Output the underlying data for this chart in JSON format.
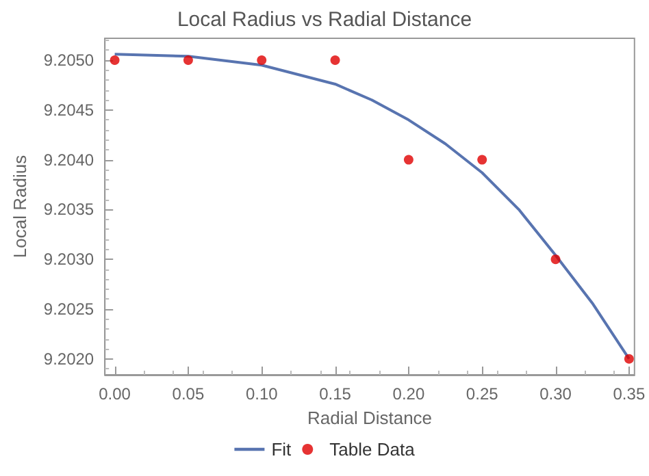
{
  "chart_data": {
    "type": "scatter",
    "title": "Local Radius vs Radial Distance",
    "xlabel": "Radial Distance",
    "ylabel": "Local Radius",
    "xlim": [
      -0.0067,
      0.3537
    ],
    "ylim": [
      9.20184,
      9.20522
    ],
    "xticks": [
      {
        "value": 0,
        "label": "0.00"
      },
      {
        "value": 0.05,
        "label": "0.05"
      },
      {
        "value": 0.1,
        "label": "0.10"
      },
      {
        "value": 0.15,
        "label": "0.15"
      },
      {
        "value": 0.2,
        "label": "0.20"
      },
      {
        "value": 0.25,
        "label": "0.25"
      },
      {
        "value": 0.3,
        "label": "0.30"
      },
      {
        "value": 0.35,
        "label": "0.35"
      }
    ],
    "yticks": [
      {
        "value": 9.202,
        "label": "9.2020"
      },
      {
        "value": 9.2025,
        "label": "9.2025"
      },
      {
        "value": 9.203,
        "label": "9.2030"
      },
      {
        "value": 9.2035,
        "label": "9.2035"
      },
      {
        "value": 9.204,
        "label": "9.2040"
      },
      {
        "value": 9.2045,
        "label": "9.2045"
      },
      {
        "value": 9.205,
        "label": "9.2050"
      }
    ],
    "grid": false,
    "legend": "bottom",
    "series": [
      {
        "name": "Fit",
        "type": "line",
        "color": "#5874b0",
        "marker": "none",
        "line_style": "solid",
        "x": [
          0,
          0.05,
          0.1,
          0.15,
          0.175,
          0.2,
          0.225,
          0.25,
          0.275,
          0.3,
          0.325,
          0.35
        ],
        "values": [
          9.20506,
          9.20504,
          9.20495,
          9.20476,
          9.2046,
          9.2044,
          9.20416,
          9.20387,
          9.2035,
          9.20304,
          9.20256,
          9.202
        ]
      },
      {
        "name": "Table Data",
        "type": "scatter",
        "color": "#e00000",
        "marker": "circle",
        "x": [
          0,
          0.05,
          0.1,
          0.15,
          0.2,
          0.25,
          0.3,
          0.35
        ],
        "values": [
          9.205,
          9.205,
          9.205,
          9.205,
          9.204,
          9.204,
          9.203,
          9.202
        ]
      }
    ]
  }
}
